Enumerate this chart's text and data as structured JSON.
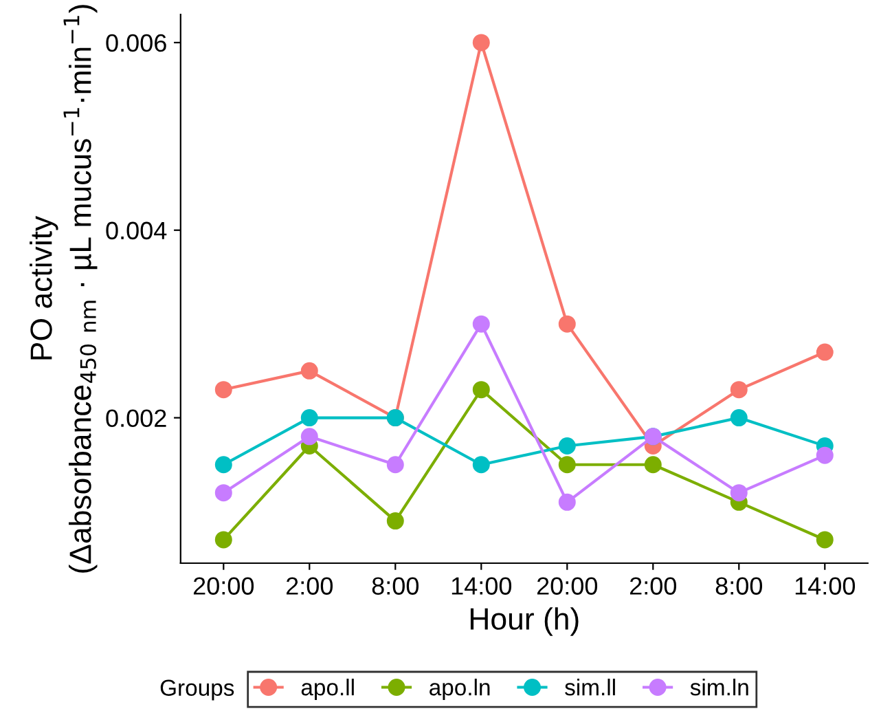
{
  "chart_data": {
    "type": "line",
    "xlabel": "Hour (h)",
    "ylabel": "PO activity\n(Δabsorbance$_{450 nm}$ · µL mucus$^{−1}$·min$^{−1}$)",
    "legend_title": "Groups",
    "categories": [
      "20:00",
      "2:00",
      "8:00",
      "14:00",
      "20:00",
      "2:00",
      "8:00",
      "14:00"
    ],
    "series": [
      {
        "name": "apo.ll",
        "color": "#f8766d",
        "values": [
          0.0023,
          0.0025,
          0.002,
          0.006,
          0.003,
          0.0017,
          0.0023,
          0.0027
        ]
      },
      {
        "name": "apo.ln",
        "color": "#7cae00",
        "values": [
          0.0007,
          0.0017,
          0.0009,
          0.0023,
          0.0015,
          0.0015,
          0.0011,
          0.0007
        ]
      },
      {
        "name": "sim.ll",
        "color": "#00bfc4",
        "values": [
          0.0015,
          0.002,
          0.002,
          0.0015,
          0.0017,
          0.0018,
          0.002,
          0.0017
        ]
      },
      {
        "name": "sim.ln",
        "color": "#c77cff",
        "values": [
          0.0012,
          0.0018,
          0.0015,
          0.003,
          0.0011,
          0.0018,
          0.0012,
          0.0016
        ]
      }
    ],
    "ylim": [
      0.00045,
      0.0063
    ],
    "yticks": [
      0.002,
      0.004,
      0.006
    ],
    "marker": "circle",
    "line_style": "solid",
    "grid": false,
    "legend": "bottom"
  }
}
